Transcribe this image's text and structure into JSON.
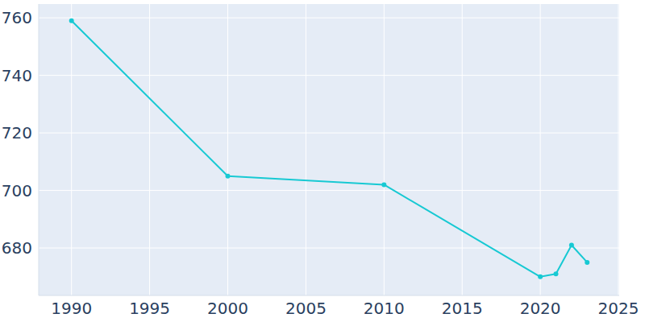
{
  "chart_data": {
    "type": "line",
    "x": [
      1990,
      2000,
      2010,
      2020,
      2021,
      2022,
      2023
    ],
    "values": [
      759,
      705,
      702,
      670,
      671,
      681,
      675
    ],
    "color": "#17c9d3",
    "marker": "circle",
    "xlim": [
      1987.9,
      2025.05
    ],
    "xticks": [
      1990,
      1995,
      2000,
      2005,
      2010,
      2015,
      2020,
      2025
    ],
    "ylim": [
      663.5,
      764.8
    ],
    "yticks": [
      680,
      700,
      720,
      740,
      760
    ],
    "grid": true
  }
}
